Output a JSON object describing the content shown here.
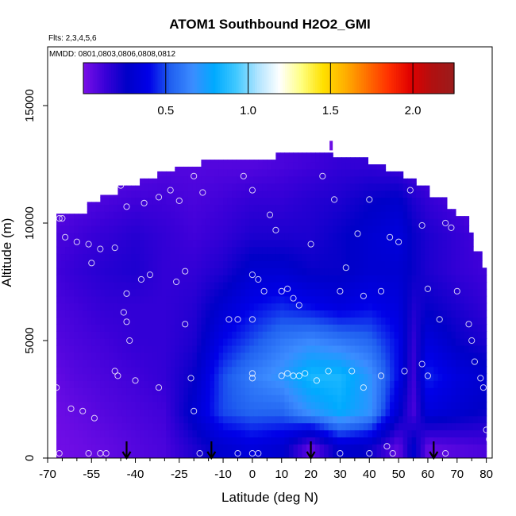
{
  "chart_data": {
    "type": "heatmap",
    "title": "ATOM1 Southbound H2O2_GMI",
    "flights_note": "Flts: 2,3,4,5,6",
    "dates_note": "MMDD: 0801,0803,0806,0808,0812",
    "xlabel": "Latitude (deg N)",
    "ylabel": "Altitude (m)",
    "xlim": [
      -70,
      82
    ],
    "ylim": [
      0,
      17500
    ],
    "x_ticks": [
      -70,
      -55,
      -40,
      -25,
      -10,
      0,
      10,
      20,
      30,
      40,
      50,
      60,
      70,
      80
    ],
    "x_tick_labels": [
      "-70",
      "-55",
      "-40",
      "-25",
      "-10",
      "0",
      "10",
      "20",
      "30",
      "40",
      "50",
      "60",
      "70",
      "80"
    ],
    "y_ticks": [
      0,
      5000,
      10000,
      15000
    ],
    "y_tick_labels": [
      "0",
      "5000",
      "10000",
      "15000"
    ],
    "colorbar": {
      "range": [
        0.0,
        2.25
      ],
      "ticks": [
        0.5,
        1.0,
        1.5,
        2.0
      ],
      "tick_labels": [
        "0.5",
        "1.0",
        "1.5",
        "2.0"
      ],
      "colors": [
        "#7a10e8",
        "#3a00d8",
        "#0000c8",
        "#0000e8",
        "#2060f0",
        "#3c8cff",
        "#00aaff",
        "#40c8ff",
        "#b0e4ff",
        "#ffffff",
        "#ffff80",
        "#ffe000",
        "#ffb000",
        "#ff7000",
        "#ff3000",
        "#e00000",
        "#b01010",
        "#9a1c1c"
      ]
    },
    "field_ceiling": [
      [
        -66,
        10400
      ],
      [
        -60,
        10400
      ],
      [
        -56,
        10900
      ],
      [
        -52,
        11200
      ],
      [
        -46,
        11600
      ],
      [
        -38,
        11900
      ],
      [
        -32,
        12200
      ],
      [
        -26,
        12400
      ],
      [
        -18,
        12700
      ],
      [
        -12,
        12700
      ],
      [
        -6,
        12700
      ],
      [
        2,
        12700
      ],
      [
        6,
        12700
      ],
      [
        8,
        13000
      ],
      [
        16,
        13000
      ],
      [
        22,
        13000
      ],
      [
        26,
        13000
      ],
      [
        28,
        12800
      ],
      [
        36,
        12800
      ],
      [
        40,
        12500
      ],
      [
        46,
        12200
      ],
      [
        52,
        11900
      ],
      [
        56,
        11600
      ],
      [
        60,
        11100
      ],
      [
        66,
        10600
      ],
      [
        70,
        10300
      ],
      [
        74,
        9600
      ],
      [
        76,
        8800
      ],
      [
        78,
        8100
      ],
      [
        80,
        6800
      ],
      [
        80,
        0
      ]
    ],
    "grid_lat": [
      -67,
      -60,
      -50,
      -40,
      -30,
      -20,
      -10,
      0,
      10,
      20,
      30,
      40,
      50,
      55,
      60,
      70,
      80
    ],
    "grid_alt": [
      500,
      2000,
      3500,
      5000,
      6500,
      8000,
      9500,
      11000,
      12500
    ],
    "grid_values": [
      [
        0.02,
        0.03,
        0.05,
        0.08,
        0.1,
        0.2,
        0.3,
        0.35,
        0.3,
        0.05,
        0.3,
        0.25,
        0.05,
        0.3,
        0.05,
        0.08,
        0.1
      ],
      [
        0.03,
        0.05,
        0.08,
        0.1,
        0.12,
        0.3,
        0.5,
        0.55,
        0.55,
        0.7,
        0.8,
        0.7,
        0.3,
        0.1,
        0.35,
        0.3,
        0.25
      ],
      [
        0.05,
        0.08,
        0.1,
        0.12,
        0.15,
        0.25,
        0.5,
        0.62,
        0.7,
        0.85,
        0.85,
        0.7,
        0.4,
        0.12,
        0.45,
        0.35,
        0.3
      ],
      [
        0.08,
        0.1,
        0.12,
        0.15,
        0.15,
        0.2,
        0.4,
        0.5,
        0.6,
        0.65,
        0.6,
        0.55,
        0.4,
        0.15,
        0.35,
        0.25,
        0.2
      ],
      [
        0.1,
        0.12,
        0.15,
        0.15,
        0.15,
        0.18,
        0.3,
        0.4,
        0.45,
        0.4,
        0.35,
        0.4,
        0.35,
        0.2,
        0.25,
        0.2,
        0.15
      ],
      [
        0.12,
        0.15,
        0.18,
        0.2,
        0.15,
        0.15,
        0.2,
        0.3,
        0.3,
        0.25,
        0.25,
        0.3,
        0.3,
        0.25,
        0.2,
        0.15,
        0.12
      ],
      [
        0.1,
        0.12,
        0.15,
        0.18,
        0.15,
        0.12,
        0.15,
        0.2,
        0.2,
        0.2,
        0.25,
        0.3,
        0.35,
        0.25,
        0.2,
        0.15,
        0.1
      ],
      [
        0.05,
        0.08,
        0.1,
        0.12,
        0.12,
        0.1,
        0.12,
        0.15,
        0.15,
        0.18,
        0.2,
        0.25,
        0.28,
        0.2,
        0.15,
        0.1,
        0.06
      ],
      [
        0.03,
        0.04,
        0.05,
        0.06,
        0.08,
        0.08,
        0.08,
        0.08,
        0.1,
        0.12,
        0.15,
        0.15,
        0.12,
        0.1,
        0.08,
        0.05,
        0.04
      ]
    ],
    "observations": [
      [
        -66,
        10200
      ],
      [
        -65,
        10200
      ],
      [
        -64,
        9400
      ],
      [
        -60,
        9200
      ],
      [
        -56,
        9100
      ],
      [
        -55,
        8300
      ],
      [
        -52,
        8900
      ],
      [
        -47,
        8950
      ],
      [
        -45,
        11600
      ],
      [
        -43,
        10700
      ],
      [
        -38,
        7600
      ],
      [
        -37,
        10850
      ],
      [
        -35,
        7800
      ],
      [
        -32,
        11100
      ],
      [
        -28,
        11400
      ],
      [
        -26,
        7500
      ],
      [
        -25,
        10950
      ],
      [
        -23,
        7950
      ],
      [
        -20,
        12000
      ],
      [
        -17,
        11300
      ],
      [
        -5,
        5900
      ],
      [
        -3,
        12000
      ],
      [
        0,
        7800
      ],
      [
        0,
        11400
      ],
      [
        2,
        7600
      ],
      [
        4,
        7100
      ],
      [
        6,
        10350
      ],
      [
        8,
        9700
      ],
      [
        10,
        7100
      ],
      [
        12,
        7200
      ],
      [
        14,
        6800
      ],
      [
        16,
        6500
      ],
      [
        20,
        9100
      ],
      [
        24,
        12000
      ],
      [
        28,
        11000
      ],
      [
        30,
        7100
      ],
      [
        32,
        8100
      ],
      [
        36,
        9550
      ],
      [
        38,
        6900
      ],
      [
        40,
        11000
      ],
      [
        44,
        7100
      ],
      [
        47,
        9400
      ],
      [
        50,
        9200
      ],
      [
        54,
        11400
      ],
      [
        58,
        9900
      ],
      [
        60,
        7200
      ],
      [
        66,
        10000
      ],
      [
        68,
        9800
      ],
      [
        70,
        7100
      ],
      [
        74,
        5700
      ],
      [
        75,
        5000
      ],
      [
        76,
        4100
      ],
      [
        78,
        3400
      ],
      [
        79,
        3000
      ],
      [
        80,
        1200
      ],
      [
        81,
        800
      ],
      [
        -67,
        3000
      ],
      [
        -66,
        200
      ],
      [
        -62,
        2100
      ],
      [
        -58,
        2000
      ],
      [
        -56,
        200
      ],
      [
        -54,
        1700
      ],
      [
        -52,
        200
      ],
      [
        -50,
        200
      ],
      [
        -47,
        3700
      ],
      [
        -46,
        3500
      ],
      [
        -44,
        6200
      ],
      [
        -43,
        7000
      ],
      [
        -43,
        5800
      ],
      [
        -42,
        5000
      ],
      [
        -40,
        3300
      ],
      [
        -32,
        3000
      ],
      [
        -23,
        5700
      ],
      [
        -21,
        3400
      ],
      [
        -20,
        2000
      ],
      [
        -18,
        200
      ],
      [
        -8,
        5900
      ],
      [
        -5,
        200
      ],
      [
        0,
        5900
      ],
      [
        0,
        3600
      ],
      [
        0,
        3400
      ],
      [
        0,
        200
      ],
      [
        2,
        200
      ],
      [
        10,
        3500
      ],
      [
        12,
        3600
      ],
      [
        14,
        3500
      ],
      [
        16,
        3500
      ],
      [
        18,
        3600
      ],
      [
        22,
        3300
      ],
      [
        26,
        3700
      ],
      [
        30,
        200
      ],
      [
        34,
        3700
      ],
      [
        38,
        3000
      ],
      [
        40,
        200
      ],
      [
        44,
        3500
      ],
      [
        46,
        500
      ],
      [
        48,
        200
      ],
      [
        52,
        3700
      ],
      [
        58,
        4000
      ],
      [
        60,
        3500
      ],
      [
        64,
        5900
      ],
      [
        66,
        200
      ]
    ],
    "arrow_latitudes": [
      -43,
      -14,
      20,
      62
    ]
  }
}
